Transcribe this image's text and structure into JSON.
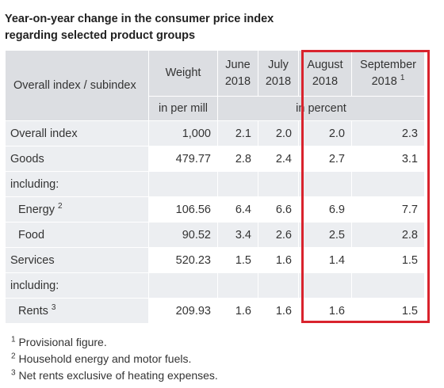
{
  "title": {
    "line1": "Year-on-year change in the consumer price index",
    "line2": "regarding selected product groups"
  },
  "table": {
    "header": {
      "label": "Overall index / subindex",
      "weight": "Weight",
      "jun": [
        "June",
        "2018"
      ],
      "jul": [
        "July",
        "2018"
      ],
      "aug": [
        "August",
        "2018"
      ],
      "sep": [
        "September",
        "2018",
        "1"
      ],
      "unit_weight": "in per mill",
      "unit_percent": "in percent"
    },
    "rows": [
      {
        "label": "Overall index",
        "weight": "1,000",
        "jun": "2.1",
        "jul": "2.0",
        "aug": "2.0",
        "sep": "2.3"
      },
      {
        "label": "Goods",
        "weight": "479.77",
        "jun": "2.8",
        "jul": "2.4",
        "aug": "2.7",
        "sep": "3.1"
      },
      {
        "label": "including:"
      },
      {
        "label": "Energy",
        "sup": "2",
        "weight": "106.56",
        "jun": "6.4",
        "jul": "6.6",
        "aug": "6.9",
        "sep": "7.7"
      },
      {
        "label": "Food",
        "weight": "90.52",
        "jun": "3.4",
        "jul": "2.6",
        "aug": "2.5",
        "sep": "2.8"
      },
      {
        "label": "Services",
        "weight": "520.23",
        "jun": "1.5",
        "jul": "1.6",
        "aug": "1.4",
        "sep": "1.5"
      },
      {
        "label": "including:"
      },
      {
        "label": "Rents",
        "sup": "3",
        "weight": "209.93",
        "jun": "1.6",
        "jul": "1.6",
        "aug": "1.6",
        "sep": "1.5"
      }
    ]
  },
  "footnotes": [
    {
      "num": "1",
      "text": "Provisional figure."
    },
    {
      "num": "2",
      "text": "Household energy and motor fuels."
    },
    {
      "num": "3",
      "text": "Net rents exclusive of heating expenses."
    }
  ],
  "highlight_color": "#d9232d"
}
